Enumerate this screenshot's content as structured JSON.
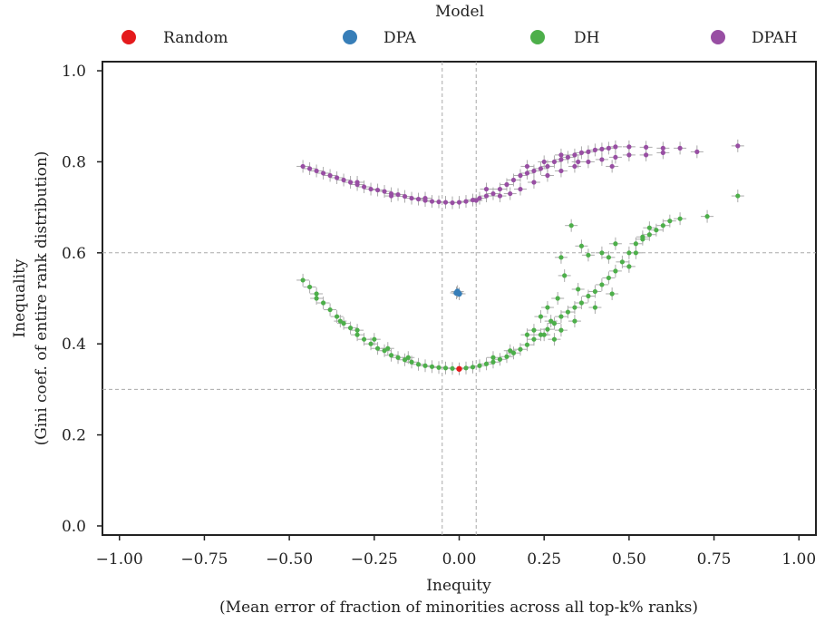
{
  "chart_data": {
    "type": "scatter",
    "legend": {
      "title": "Model",
      "placement": "top",
      "entries": [
        {
          "label": "Random",
          "color": "#e41a1c"
        },
        {
          "label": "DPA",
          "color": "#377eb8"
        },
        {
          "label": "DH",
          "color": "#4daf4a"
        },
        {
          "label": "DPAH",
          "color": "#984ea3"
        }
      ]
    },
    "xlabel": "Inequity",
    "xlabel_sub": "(Mean error of fraction of minorities across all top-k% ranks)",
    "ylabel": "Inequality",
    "ylabel_sub": "(Gini coef. of entire rank distribution)",
    "xlim": [
      -1.05,
      1.05
    ],
    "ylim": [
      -0.02,
      1.02
    ],
    "xticks": [
      -1.0,
      -0.75,
      -0.5,
      -0.25,
      0.0,
      0.25,
      0.5,
      0.75,
      1.0
    ],
    "xtick_labels": [
      "−1.00",
      "−0.75",
      "−0.50",
      "−0.25",
      "0.00",
      "0.25",
      "0.50",
      "0.75",
      "1.00"
    ],
    "yticks": [
      0.0,
      0.2,
      0.4,
      0.6,
      0.8,
      1.0
    ],
    "ytick_labels": [
      "0.0",
      "0.2",
      "0.4",
      "0.6",
      "0.8",
      "1.0"
    ],
    "reference_lines": {
      "vertical": [
        -0.05,
        0.05
      ],
      "horizontal": [
        0.3,
        0.6
      ],
      "style": "dashed"
    },
    "grid": false,
    "series": [
      {
        "name": "Random",
        "color": "#e41a1c",
        "points": [
          [
            0.0,
            0.345
          ]
        ]
      },
      {
        "name": "DPA",
        "color": "#377eb8",
        "points": [
          [
            -0.005,
            0.515
          ],
          [
            0.0,
            0.51
          ],
          [
            -0.008,
            0.512
          ]
        ]
      },
      {
        "name": "DH",
        "color": "#4daf4a",
        "points": [
          [
            -0.46,
            0.54
          ],
          [
            -0.44,
            0.525
          ],
          [
            -0.42,
            0.51
          ],
          [
            -0.4,
            0.49
          ],
          [
            -0.38,
            0.475
          ],
          [
            -0.36,
            0.46
          ],
          [
            -0.34,
            0.445
          ],
          [
            -0.32,
            0.435
          ],
          [
            -0.3,
            0.42
          ],
          [
            -0.28,
            0.41
          ],
          [
            -0.26,
            0.4
          ],
          [
            -0.24,
            0.39
          ],
          [
            -0.22,
            0.385
          ],
          [
            -0.2,
            0.375
          ],
          [
            -0.18,
            0.37
          ],
          [
            -0.16,
            0.365
          ],
          [
            -0.14,
            0.36
          ],
          [
            -0.12,
            0.355
          ],
          [
            -0.1,
            0.352
          ],
          [
            -0.08,
            0.35
          ],
          [
            -0.06,
            0.348
          ],
          [
            -0.04,
            0.347
          ],
          [
            -0.02,
            0.346
          ],
          [
            0.02,
            0.347
          ],
          [
            0.04,
            0.349
          ],
          [
            0.06,
            0.352
          ],
          [
            0.08,
            0.356
          ],
          [
            0.1,
            0.36
          ],
          [
            0.12,
            0.366
          ],
          [
            0.14,
            0.372
          ],
          [
            0.16,
            0.38
          ],
          [
            0.18,
            0.388
          ],
          [
            0.2,
            0.398
          ],
          [
            0.22,
            0.41
          ],
          [
            0.24,
            0.42
          ],
          [
            0.26,
            0.432
          ],
          [
            0.28,
            0.445
          ],
          [
            0.3,
            0.46
          ],
          [
            0.32,
            0.47
          ],
          [
            0.34,
            0.48
          ],
          [
            0.36,
            0.49
          ],
          [
            0.38,
            0.505
          ],
          [
            0.4,
            0.515
          ],
          [
            0.42,
            0.53
          ],
          [
            0.44,
            0.545
          ],
          [
            0.46,
            0.56
          ],
          [
            0.48,
            0.58
          ],
          [
            0.5,
            0.6
          ],
          [
            0.52,
            0.62
          ],
          [
            0.54,
            0.635
          ],
          [
            0.56,
            0.64
          ],
          [
            0.58,
            0.65
          ],
          [
            0.6,
            0.66
          ],
          [
            0.62,
            0.67
          ],
          [
            0.65,
            0.675
          ],
          [
            0.73,
            0.68
          ],
          [
            0.82,
            0.725
          ],
          [
            0.33,
            0.66
          ],
          [
            0.36,
            0.615
          ],
          [
            0.38,
            0.595
          ],
          [
            0.27,
            0.45
          ],
          [
            0.29,
            0.5
          ],
          [
            0.3,
            0.59
          ],
          [
            0.31,
            0.55
          ],
          [
            0.25,
            0.42
          ],
          [
            0.22,
            0.43
          ],
          [
            0.2,
            0.42
          ],
          [
            0.44,
            0.59
          ],
          [
            0.42,
            0.6
          ],
          [
            0.46,
            0.62
          ],
          [
            0.5,
            0.57
          ],
          [
            0.52,
            0.6
          ],
          [
            0.54,
            0.63
          ],
          [
            0.56,
            0.655
          ],
          [
            0.3,
            0.43
          ],
          [
            0.28,
            0.41
          ],
          [
            0.34,
            0.45
          ],
          [
            0.4,
            0.48
          ],
          [
            0.45,
            0.51
          ],
          [
            0.35,
            0.52
          ],
          [
            0.26,
            0.48
          ],
          [
            0.24,
            0.46
          ],
          [
            -0.3,
            0.43
          ],
          [
            -0.25,
            0.41
          ],
          [
            -0.21,
            0.39
          ],
          [
            -0.15,
            0.37
          ],
          [
            -0.35,
            0.45
          ],
          [
            -0.42,
            0.5
          ],
          [
            0.1,
            0.37
          ],
          [
            0.15,
            0.385
          ]
        ]
      },
      {
        "name": "DPAH",
        "color": "#984ea3",
        "points": [
          [
            -0.46,
            0.79
          ],
          [
            -0.44,
            0.785
          ],
          [
            -0.42,
            0.78
          ],
          [
            -0.4,
            0.775
          ],
          [
            -0.38,
            0.77
          ],
          [
            -0.36,
            0.765
          ],
          [
            -0.34,
            0.76
          ],
          [
            -0.32,
            0.755
          ],
          [
            -0.3,
            0.75
          ],
          [
            -0.28,
            0.745
          ],
          [
            -0.26,
            0.74
          ],
          [
            -0.24,
            0.738
          ],
          [
            -0.22,
            0.735
          ],
          [
            -0.2,
            0.73
          ],
          [
            -0.18,
            0.728
          ],
          [
            -0.16,
            0.724
          ],
          [
            -0.14,
            0.72
          ],
          [
            -0.12,
            0.718
          ],
          [
            -0.1,
            0.715
          ],
          [
            -0.08,
            0.713
          ],
          [
            -0.06,
            0.712
          ],
          [
            -0.04,
            0.711
          ],
          [
            -0.02,
            0.71
          ],
          [
            0.0,
            0.711
          ],
          [
            0.02,
            0.713
          ],
          [
            0.04,
            0.716
          ],
          [
            0.06,
            0.72
          ],
          [
            0.08,
            0.725
          ],
          [
            0.1,
            0.73
          ],
          [
            0.12,
            0.74
          ],
          [
            0.14,
            0.75
          ],
          [
            0.16,
            0.76
          ],
          [
            0.18,
            0.77
          ],
          [
            0.2,
            0.775
          ],
          [
            0.22,
            0.78
          ],
          [
            0.24,
            0.785
          ],
          [
            0.26,
            0.79
          ],
          [
            0.28,
            0.8
          ],
          [
            0.3,
            0.805
          ],
          [
            0.32,
            0.81
          ],
          [
            0.34,
            0.815
          ],
          [
            0.36,
            0.82
          ],
          [
            0.38,
            0.822
          ],
          [
            0.4,
            0.826
          ],
          [
            0.42,
            0.828
          ],
          [
            0.44,
            0.83
          ],
          [
            0.46,
            0.833
          ],
          [
            0.5,
            0.833
          ],
          [
            0.55,
            0.832
          ],
          [
            0.6,
            0.83
          ],
          [
            0.65,
            0.83
          ],
          [
            0.7,
            0.822
          ],
          [
            0.82,
            0.835
          ],
          [
            0.15,
            0.73
          ],
          [
            0.18,
            0.74
          ],
          [
            0.22,
            0.755
          ],
          [
            0.26,
            0.77
          ],
          [
            0.3,
            0.78
          ],
          [
            0.34,
            0.79
          ],
          [
            0.38,
            0.8
          ],
          [
            0.42,
            0.805
          ],
          [
            0.46,
            0.81
          ],
          [
            0.5,
            0.815
          ],
          [
            0.55,
            0.815
          ],
          [
            0.6,
            0.82
          ],
          [
            0.12,
            0.725
          ],
          [
            0.2,
            0.79
          ],
          [
            0.25,
            0.8
          ],
          [
            0.3,
            0.815
          ],
          [
            0.35,
            0.8
          ],
          [
            0.45,
            0.79
          ],
          [
            0.08,
            0.74
          ],
          [
            -0.3,
            0.755
          ],
          [
            -0.2,
            0.725
          ],
          [
            -0.1,
            0.72
          ],
          [
            0.05,
            0.715
          ]
        ]
      }
    ]
  }
}
